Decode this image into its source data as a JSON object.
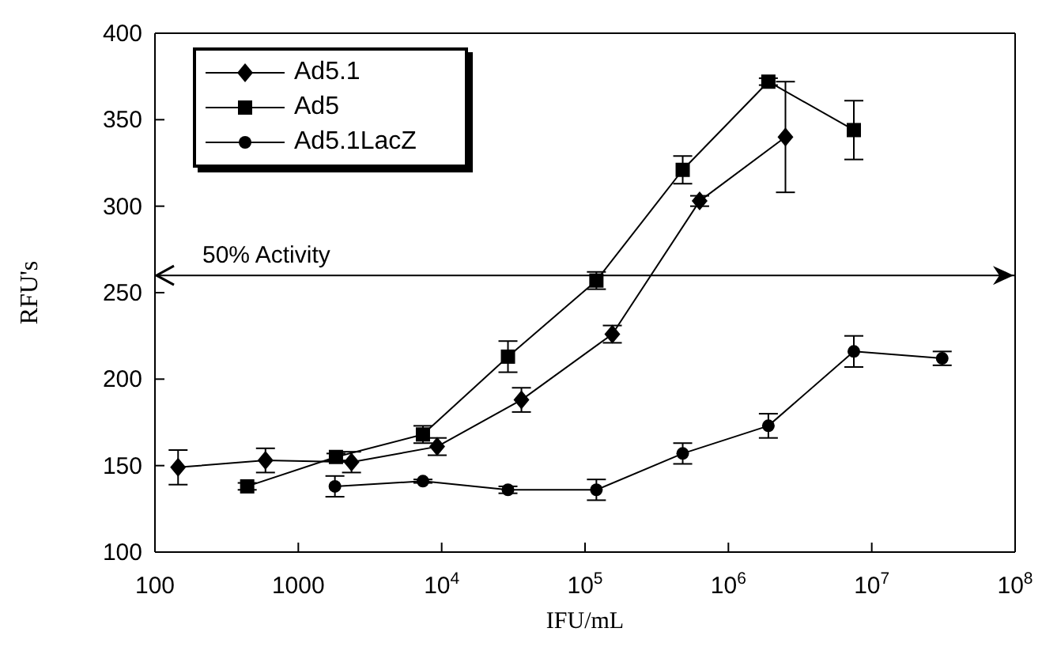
{
  "chart_data": {
    "type": "line",
    "xlabel": "IFU/mL",
    "ylabel": "RFU's",
    "log": "x",
    "xlim": [
      100,
      100000000
    ],
    "xticks": [
      100,
      1000,
      {
        "value": 10000,
        "label": "10$^{4}$"
      },
      {
        "value": 100000,
        "label": "10$^{5}$"
      },
      {
        "value": 1000000,
        "label": "10$^{6}$"
      },
      {
        "value": 10000000,
        "label": "10$^{7}$"
      },
      {
        "value": 100000000,
        "label": "10$^{8}$"
      }
    ],
    "ylim": [
      100,
      400
    ],
    "yticks": [
      100,
      150,
      200,
      250,
      300,
      350,
      400
    ],
    "grid": false,
    "legend": "top left",
    "series": [
      {
        "name": "Ad5.1",
        "color": "#000000",
        "marker": "diamond",
        "line_style": "solid",
        "x": [
          145,
          590,
          2350,
          9300,
          36000,
          155000,
          630000,
          2500000
        ],
        "values": [
          149,
          153,
          152,
          161,
          188,
          226,
          303,
          340
        ],
        "errors": [
          10,
          7,
          6,
          5,
          7,
          5,
          3,
          32
        ]
      },
      {
        "name": "Ad5",
        "color": "#000000",
        "marker": "square",
        "line_style": "solid",
        "x": [
          440,
          1830,
          7400,
          29000,
          120000,
          480000,
          1900000,
          7500000
        ],
        "values": [
          138,
          155,
          168,
          213,
          257,
          321,
          372,
          344
        ],
        "errors": [
          2,
          2,
          5,
          9,
          5,
          8,
          2,
          17
        ]
      },
      {
        "name": "Ad5.1LacZ",
        "color": "#000000",
        "marker": "circle",
        "line_style": "solid",
        "x": [
          1800,
          7400,
          29000,
          120000,
          480000,
          1900000,
          7500000,
          31000000
        ],
        "values": [
          138,
          141,
          136,
          136,
          157,
          173,
          216,
          212
        ],
        "errors": [
          6,
          1,
          2,
          6,
          6,
          7,
          9,
          4
        ]
      }
    ],
    "ref_lines": [
      {
        "axis": "y",
        "value": 260,
        "label": "50% Activity",
        "color": "#000000"
      }
    ]
  }
}
